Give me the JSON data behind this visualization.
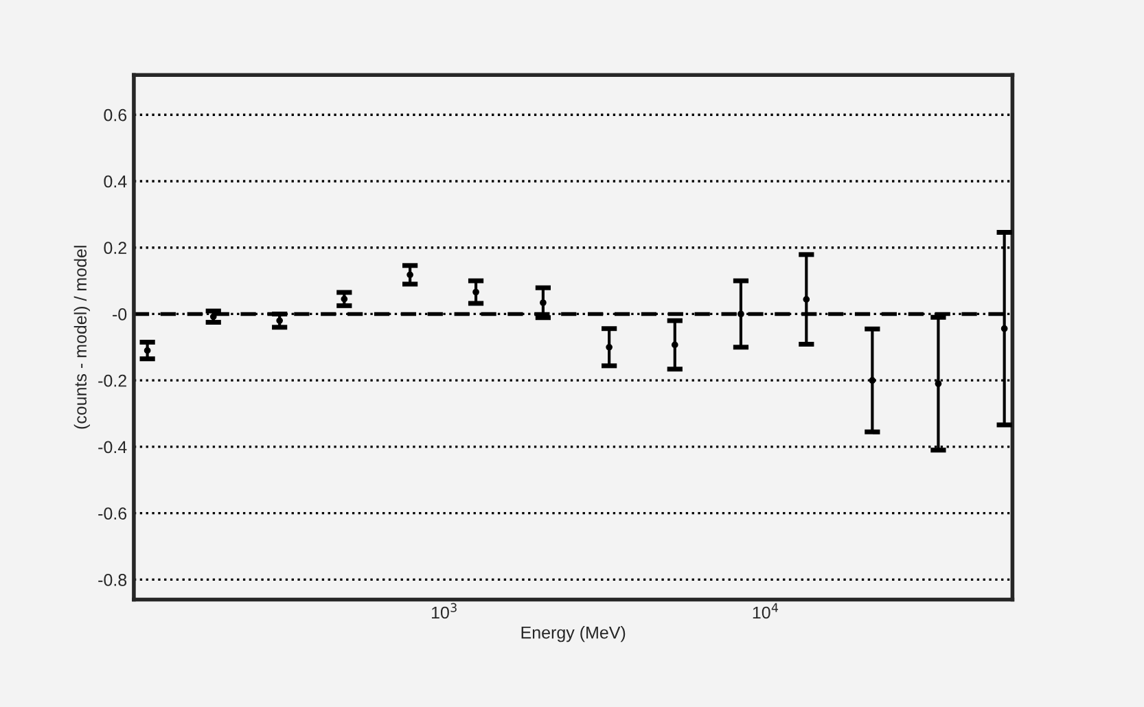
{
  "chart_data": {
    "type": "scatter",
    "xlabel": "Energy (MeV)",
    "ylabel": "(counts - model) / model",
    "x": [
      119,
      191,
      307,
      488,
      782,
      1254,
      2030,
      3260,
      5220,
      8380,
      13400,
      21500,
      34500,
      55400
    ],
    "values": [
      -0.11,
      -0.008,
      -0.02,
      0.045,
      0.118,
      0.066,
      0.034,
      -0.1,
      -0.093,
      0,
      0.044,
      -0.2,
      -0.21,
      -0.044
    ],
    "errors": [
      0.025,
      0.017,
      0.02,
      0.02,
      0.028,
      0.034,
      0.045,
      0.056,
      0.073,
      0.1,
      0.135,
      0.155,
      0.2,
      0.29
    ],
    "color": "#000000",
    "marker": "circle",
    "log": "x",
    "xlim": [
      108,
      58700
    ],
    "xticks": [
      {
        "value": 1000,
        "label": "10$^{3}$"
      },
      {
        "value": 10000,
        "label": "10$^{4}$"
      }
    ],
    "ylim": [
      -0.86,
      0.72
    ],
    "yticks": [
      {
        "value": -0.8,
        "label": "-0.8"
      },
      {
        "value": -0.6,
        "label": "-0.6"
      },
      {
        "value": -0.4,
        "label": "-0.4"
      },
      {
        "value": -0.2,
        "label": "-0.2"
      },
      {
        "value": 0,
        "label": "-0"
      },
      {
        "value": 0.2,
        "label": "0.2"
      },
      {
        "value": 0.4,
        "label": "0.4"
      },
      {
        "value": 0.6,
        "label": "0.6"
      }
    ],
    "grid": "y",
    "ref_lines": [
      {
        "axis": "y",
        "value": 0,
        "line_style": "dashed",
        "color": "#000000"
      }
    ]
  }
}
